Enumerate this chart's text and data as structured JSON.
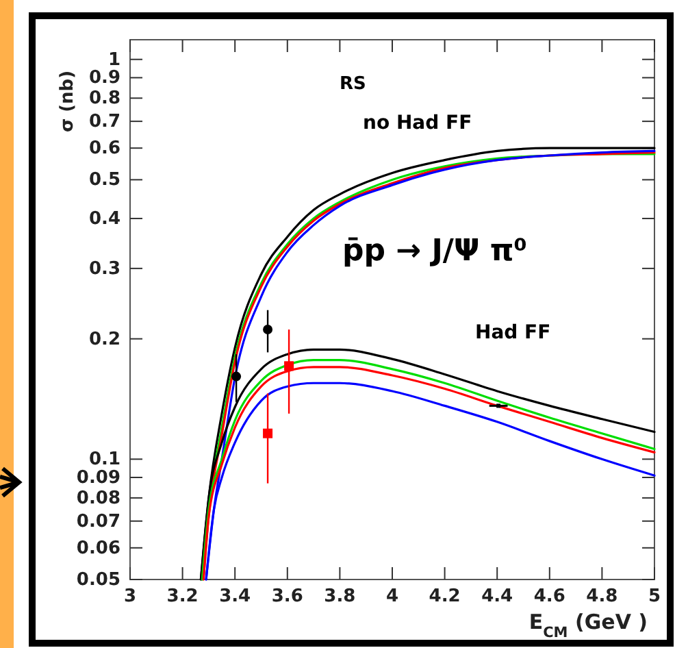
{
  "chart_data": {
    "type": "line",
    "xlabel": "E$_{CM}$ (GeV )",
    "ylabel": "σ (nb)",
    "log": "y",
    "xlim": [
      3,
      5
    ],
    "ylim": [
      0.05,
      1.12
    ],
    "xticks": [
      3,
      3.2,
      3.4,
      3.6,
      3.8,
      4,
      4.2,
      4.4,
      4.6,
      4.8,
      5
    ],
    "yticks": [
      0.05,
      0.06,
      0.07,
      0.08,
      0.09,
      0.1,
      0.2,
      0.3,
      0.4,
      0.5,
      0.6,
      0.7,
      0.8,
      0.9,
      1
    ],
    "grid": false,
    "line_style": "solid",
    "marker": "none",
    "annotations": [
      "p̄p → J/Ψ π⁰",
      "no Had FF",
      "Had FF",
      "RS"
    ],
    "series": [
      {
        "color": "#000000",
        "x": [
          3.27,
          3.3,
          3.35,
          3.4,
          3.5,
          3.6,
          3.7,
          3.8,
          4.0,
          4.2,
          4.4,
          4.6,
          4.8,
          5.0
        ],
        "values": [
          0.05,
          0.08,
          0.13,
          0.19,
          0.29,
          0.36,
          0.42,
          0.46,
          0.52,
          0.56,
          0.59,
          0.6,
          0.6,
          0.6
        ]
      },
      {
        "color": "#00dd00",
        "x": [
          3.275,
          3.3,
          3.35,
          3.4,
          3.5,
          3.6,
          3.7,
          3.8,
          4.0,
          4.2,
          4.4,
          4.6,
          4.8,
          5.0
        ],
        "values": [
          0.05,
          0.075,
          0.12,
          0.18,
          0.275,
          0.345,
          0.4,
          0.44,
          0.5,
          0.54,
          0.565,
          0.575,
          0.58,
          0.58
        ]
      },
      {
        "color": "#ff0000",
        "x": [
          3.28,
          3.3,
          3.35,
          3.4,
          3.5,
          3.6,
          3.7,
          3.8,
          4.0,
          4.2,
          4.4,
          4.6,
          4.8,
          5.0
        ],
        "values": [
          0.05,
          0.072,
          0.115,
          0.175,
          0.27,
          0.34,
          0.395,
          0.435,
          0.49,
          0.535,
          0.56,
          0.575,
          0.58,
          0.585
        ]
      },
      {
        "color": "#0000ff",
        "x": [
          3.29,
          3.32,
          3.35,
          3.4,
          3.5,
          3.6,
          3.7,
          3.8,
          4.0,
          4.2,
          4.4,
          4.6,
          4.8,
          5.0
        ],
        "values": [
          0.05,
          0.075,
          0.1,
          0.16,
          0.255,
          0.33,
          0.385,
          0.43,
          0.485,
          0.53,
          0.56,
          0.575,
          0.585,
          0.59
        ]
      },
      {
        "color": "#000000",
        "x": [
          3.27,
          3.3,
          3.35,
          3.4,
          3.5,
          3.6,
          3.7,
          3.8,
          4.0,
          4.2,
          4.4,
          4.6,
          4.8,
          5.0
        ],
        "values": [
          0.05,
          0.08,
          0.11,
          0.135,
          0.168,
          0.183,
          0.188,
          0.188,
          0.178,
          0.163,
          0.148,
          0.136,
          0.126,
          0.117
        ]
      },
      {
        "color": "#00dd00",
        "x": [
          3.275,
          3.3,
          3.35,
          3.4,
          3.5,
          3.6,
          3.7,
          3.8,
          4.0,
          4.2,
          4.4,
          4.6,
          4.8,
          5.0
        ],
        "values": [
          0.05,
          0.075,
          0.1,
          0.125,
          0.157,
          0.172,
          0.177,
          0.177,
          0.168,
          0.155,
          0.14,
          0.127,
          0.116,
          0.106
        ]
      },
      {
        "color": "#ff0000",
        "x": [
          3.28,
          3.3,
          3.35,
          3.4,
          3.5,
          3.6,
          3.7,
          3.8,
          4.0,
          4.2,
          4.4,
          4.6,
          4.8,
          5.0
        ],
        "values": [
          0.05,
          0.072,
          0.097,
          0.12,
          0.152,
          0.166,
          0.17,
          0.17,
          0.162,
          0.15,
          0.136,
          0.124,
          0.113,
          0.104
        ]
      },
      {
        "color": "#0000ff",
        "x": [
          3.29,
          3.32,
          3.35,
          3.4,
          3.5,
          3.6,
          3.7,
          3.8,
          4.0,
          4.2,
          4.4,
          4.6,
          4.8,
          5.0
        ],
        "values": [
          0.05,
          0.075,
          0.09,
          0.11,
          0.14,
          0.152,
          0.155,
          0.155,
          0.148,
          0.136,
          0.124,
          0.111,
          0.1,
          0.091
        ]
      },
      {
        "type": "scatter",
        "marker": "circle",
        "color": "#000000",
        "x": [
          3.405,
          3.525
        ],
        "values": [
          0.161,
          0.211
        ],
        "errors": [
          [
            0.139,
            0.183
          ],
          [
            0.185,
            0.236
          ]
        ]
      },
      {
        "type": "scatter",
        "marker": "square",
        "color": "#ff0000",
        "x": [
          3.525,
          3.606
        ],
        "values": [
          0.116,
          0.171
        ],
        "errors": [
          [
            0.087,
            0.146
          ],
          [
            0.13,
            0.211
          ]
        ]
      },
      {
        "type": "scatter",
        "marker": "square",
        "color": "#000000",
        "x": [
          4.405
        ],
        "values": [
          0.136
        ],
        "xerrors": [
          [
            4.37,
            4.44
          ]
        ]
      }
    ]
  }
}
